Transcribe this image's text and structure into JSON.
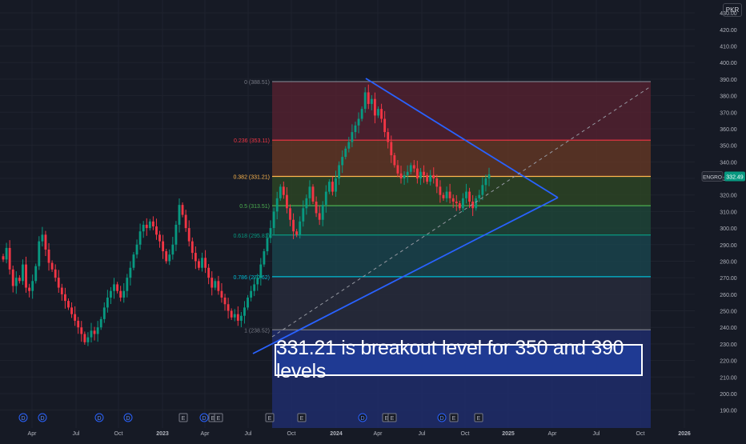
{
  "currency": "PKR",
  "symbol_label": "ENGRO",
  "last_price_label": "332.49",
  "annotation": "331.21 is breakout level for 350 and 390 levels",
  "chart_data": {
    "type": "candlestick",
    "title": "",
    "ylim": [
      185,
      432
    ],
    "y_ticks": [
      190,
      200,
      210,
      220,
      230,
      240,
      250,
      260,
      270,
      280,
      290,
      300,
      310,
      320,
      330,
      340,
      350,
      360,
      370,
      380,
      390,
      400,
      410,
      420,
      430
    ],
    "x_tick_labels": [
      "Apr",
      "Jul",
      "Oct",
      "2023",
      "Apr",
      "Jul",
      "Oct",
      "2024",
      "Apr",
      "Jul",
      "Oct",
      "2025",
      "Apr",
      "Jul",
      "Oct",
      "2026"
    ],
    "fib_levels": [
      {
        "ratio_label": "0 (388.51)",
        "price": 388.51,
        "color": "#787b86"
      },
      {
        "ratio_label": "0.236 (353.11)",
        "price": 353.11,
        "color": "#f23645"
      },
      {
        "ratio_label": "0.382 (331.21)",
        "price": 331.21,
        "color": "#ffb74d"
      },
      {
        "ratio_label": "0.5 (313.51)",
        "price": 313.51,
        "color": "#4caf50"
      },
      {
        "ratio_label": "0.618 (295.81)",
        "price": 295.81,
        "color": "#089981"
      },
      {
        "ratio_label": "0.786 (270.62)",
        "price": 270.62,
        "color": "#00bcd4"
      },
      {
        "ratio_label": "1 (238.52)",
        "price": 238.52,
        "color": "#787b86"
      }
    ],
    "closes": [
      281,
      288,
      275,
      265,
      270,
      268,
      278,
      264,
      262,
      268,
      277,
      292,
      296,
      287,
      279,
      275,
      270,
      264,
      260,
      256,
      252,
      248,
      244,
      240,
      236,
      231,
      234,
      238,
      236,
      240,
      245,
      252,
      258,
      262,
      266,
      262,
      258,
      262,
      270,
      276,
      284,
      290,
      298,
      302,
      300,
      304,
      301,
      296,
      292,
      286,
      280,
      284,
      290,
      302,
      314,
      308,
      300,
      292,
      285,
      280,
      276,
      282,
      276,
      270,
      264,
      268,
      262,
      258,
      254,
      250,
      246,
      248,
      244,
      247,
      252,
      258,
      262,
      266,
      270,
      278,
      286,
      294,
      300,
      310,
      318,
      325,
      320,
      312,
      305,
      298,
      296,
      304,
      312,
      318,
      325,
      316,
      309,
      305,
      314,
      322,
      328,
      322,
      330,
      338,
      343,
      348,
      352,
      358,
      362,
      366,
      372,
      382,
      375,
      378,
      368,
      372,
      366,
      358,
      352,
      344,
      338,
      333,
      330,
      332,
      334,
      338,
      336,
      330,
      334,
      332,
      328,
      332,
      330,
      325,
      320,
      318,
      322,
      318,
      316,
      315,
      312,
      318,
      322,
      316,
      312,
      318,
      320,
      326,
      330,
      332.49
    ],
    "event_markers": [
      "D",
      "D",
      "D",
      "D",
      "E",
      "D",
      "E",
      "E",
      "E",
      "E",
      "D",
      "E",
      "E",
      "D",
      "E",
      "E"
    ]
  }
}
